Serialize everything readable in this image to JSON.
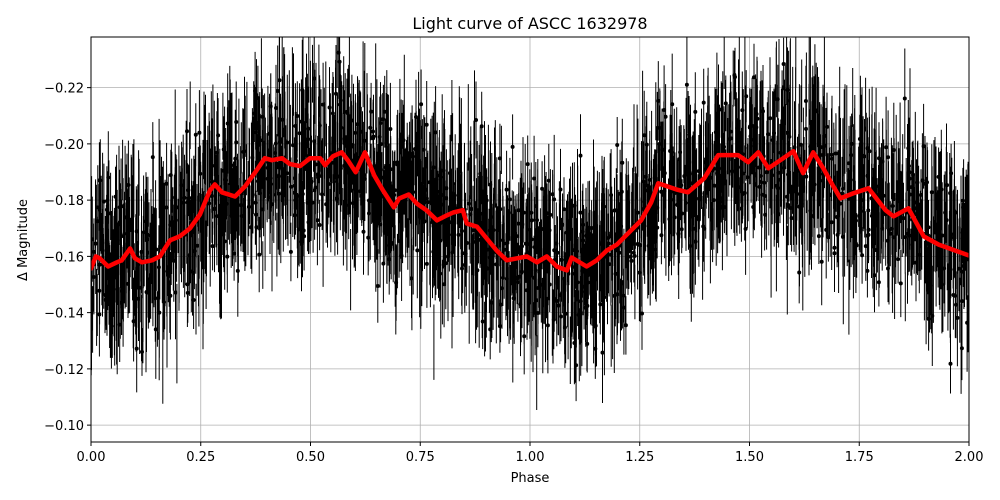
{
  "chart_data": {
    "type": "scatter",
    "title": "Light curve of ASCC 1632978",
    "xlabel": "Phase",
    "ylabel": "Δ Magnitude",
    "xlim": [
      0.0,
      2.0
    ],
    "ylim": [
      -0.094,
      -0.238
    ],
    "y_inverted": true,
    "grid": true,
    "xticks": [
      0.0,
      0.25,
      0.5,
      0.75,
      1.0,
      1.25,
      1.5,
      1.75,
      2.0
    ],
    "xtick_labels": [
      "0.00",
      "0.25",
      "0.50",
      "0.75",
      "1.00",
      "1.25",
      "1.50",
      "1.75",
      "2.00"
    ],
    "yticks": [
      -0.22,
      -0.2,
      -0.18,
      -0.16,
      -0.14,
      -0.12,
      -0.1
    ],
    "ytick_labels": [
      "−0.22",
      "−0.20",
      "−0.18",
      "−0.16",
      "−0.14",
      "−0.12",
      "−0.10"
    ],
    "series": [
      {
        "name": "observations",
        "style": "errorbar",
        "color": "#000000",
        "marker": "o",
        "description": "Dense black points with vertical error bars, scattered roughly between -0.24 and -0.09, following the binned trend",
        "n_points_approx": 3000,
        "noise_sigma": 0.025,
        "errbar_halfwidth": 0.012
      },
      {
        "name": "binned trend",
        "style": "line",
        "color": "#ff0000",
        "linewidth": 4,
        "x": [
          0.0,
          0.011,
          0.02,
          0.039,
          0.059,
          0.07,
          0.089,
          0.1,
          0.116,
          0.139,
          0.157,
          0.18,
          0.202,
          0.225,
          0.248,
          0.271,
          0.282,
          0.298,
          0.328,
          0.351,
          0.374,
          0.396,
          0.412,
          0.435,
          0.453,
          0.476,
          0.499,
          0.522,
          0.533,
          0.551,
          0.571,
          0.585,
          0.603,
          0.624,
          0.645,
          0.665,
          0.69,
          0.702,
          0.724,
          0.742,
          0.765,
          0.788,
          0.811,
          0.825,
          0.847,
          0.856,
          0.879,
          0.924,
          0.947,
          0.993,
          1.016,
          1.038,
          1.061,
          1.084,
          1.095,
          1.129,
          1.152,
          1.175,
          1.198,
          1.221,
          1.253,
          1.276,
          1.292,
          1.333,
          1.36,
          1.397,
          1.429,
          1.474,
          1.497,
          1.52,
          1.543,
          1.577,
          1.6,
          1.622,
          1.645,
          1.668,
          1.691,
          1.707,
          1.736,
          1.771,
          1.81,
          1.828,
          1.862,
          1.897,
          1.931,
          2.0
        ],
        "y": [
          -0.1557,
          -0.16,
          -0.1593,
          -0.1564,
          -0.1579,
          -0.1586,
          -0.1628,
          -0.1593,
          -0.1579,
          -0.1586,
          -0.16,
          -0.1657,
          -0.1671,
          -0.1699,
          -0.1749,
          -0.1835,
          -0.1856,
          -0.1828,
          -0.1813,
          -0.1849,
          -0.1899,
          -0.1949,
          -0.1942,
          -0.1949,
          -0.1928,
          -0.1921,
          -0.1949,
          -0.1949,
          -0.1924,
          -0.1956,
          -0.197,
          -0.1942,
          -0.1899,
          -0.197,
          -0.1888,
          -0.1835,
          -0.1774,
          -0.1806,
          -0.182,
          -0.1788,
          -0.1763,
          -0.1728,
          -0.1746,
          -0.1756,
          -0.1764,
          -0.1717,
          -0.1706,
          -0.1621,
          -0.1586,
          -0.16,
          -0.1579,
          -0.16,
          -0.1564,
          -0.155,
          -0.1596,
          -0.1564,
          -0.1586,
          -0.1621,
          -0.1642,
          -0.1678,
          -0.1728,
          -0.1792,
          -0.186,
          -0.1838,
          -0.1828,
          -0.1878,
          -0.196,
          -0.196,
          -0.1935,
          -0.197,
          -0.1913,
          -0.1949,
          -0.1974,
          -0.1896,
          -0.197,
          -0.1913,
          -0.1849,
          -0.1806,
          -0.1824,
          -0.1842,
          -0.1764,
          -0.1742,
          -0.1771,
          -0.1671,
          -0.1642,
          -0.1603
        ]
      }
    ]
  }
}
